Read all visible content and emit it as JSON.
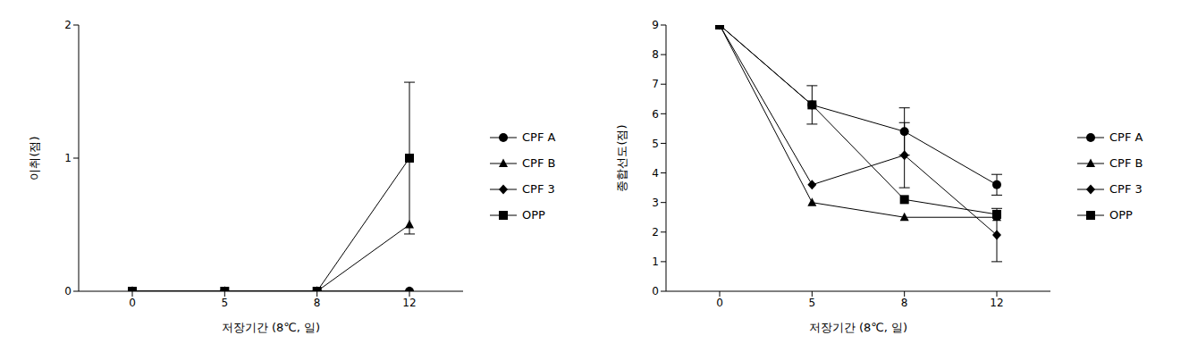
{
  "chart_data": [
    {
      "type": "line",
      "x_label": "저장기간 (8℃, 일)",
      "y_label": "이취(점)",
      "categories": [
        0,
        5,
        8,
        12
      ],
      "ylim": [
        0,
        2
      ],
      "yticks": [
        0,
        1,
        2
      ],
      "grid": false,
      "legend": "right",
      "series": [
        {
          "name": "CPF A",
          "color": "#000000",
          "marker": "circle",
          "values": [
            0,
            0,
            0,
            0
          ],
          "error": [
            null,
            null,
            null,
            null
          ]
        },
        {
          "name": "CPF B",
          "color": "#000000",
          "marker": "triangle",
          "values": [
            0,
            0,
            0,
            0.5
          ],
          "error": [
            null,
            null,
            null,
            null
          ]
        },
        {
          "name": "CPF 3",
          "color": "#000000",
          "marker": "diamond",
          "values": [
            0,
            0,
            0,
            0
          ],
          "error": [
            null,
            null,
            null,
            null
          ]
        },
        {
          "name": "OPP",
          "color": "#000000",
          "marker": "square",
          "values": [
            0,
            0,
            0,
            1
          ],
          "error": [
            null,
            null,
            null,
            0.57
          ]
        }
      ]
    },
    {
      "type": "line",
      "x_label": "저장기간 (8℃, 일)",
      "y_label": "종합선도(점)",
      "categories": [
        0,
        5,
        8,
        12
      ],
      "ylim": [
        0,
        9
      ],
      "yticks": [
        0,
        1,
        2,
        3,
        4,
        5,
        6,
        7,
        8,
        9
      ],
      "grid": false,
      "legend": "right",
      "series": [
        {
          "name": "CPF A",
          "color": "#000000",
          "marker": "circle",
          "values": [
            9,
            6.3,
            5.4,
            3.6
          ],
          "error": [
            null,
            null,
            0.8,
            0.35
          ]
        },
        {
          "name": "CPF B",
          "color": "#000000",
          "marker": "triangle",
          "values": [
            9,
            3.0,
            2.5,
            2.5
          ],
          "error": [
            null,
            null,
            null,
            null
          ]
        },
        {
          "name": "CPF 3",
          "color": "#000000",
          "marker": "diamond",
          "values": [
            9,
            3.6,
            4.6,
            1.9
          ],
          "error": [
            null,
            null,
            1.1,
            0.9
          ]
        },
        {
          "name": "OPP",
          "color": "#000000",
          "marker": "square",
          "values": [
            9,
            6.3,
            3.1,
            2.6
          ],
          "error": [
            null,
            0.65,
            null,
            null
          ]
        }
      ]
    }
  ]
}
